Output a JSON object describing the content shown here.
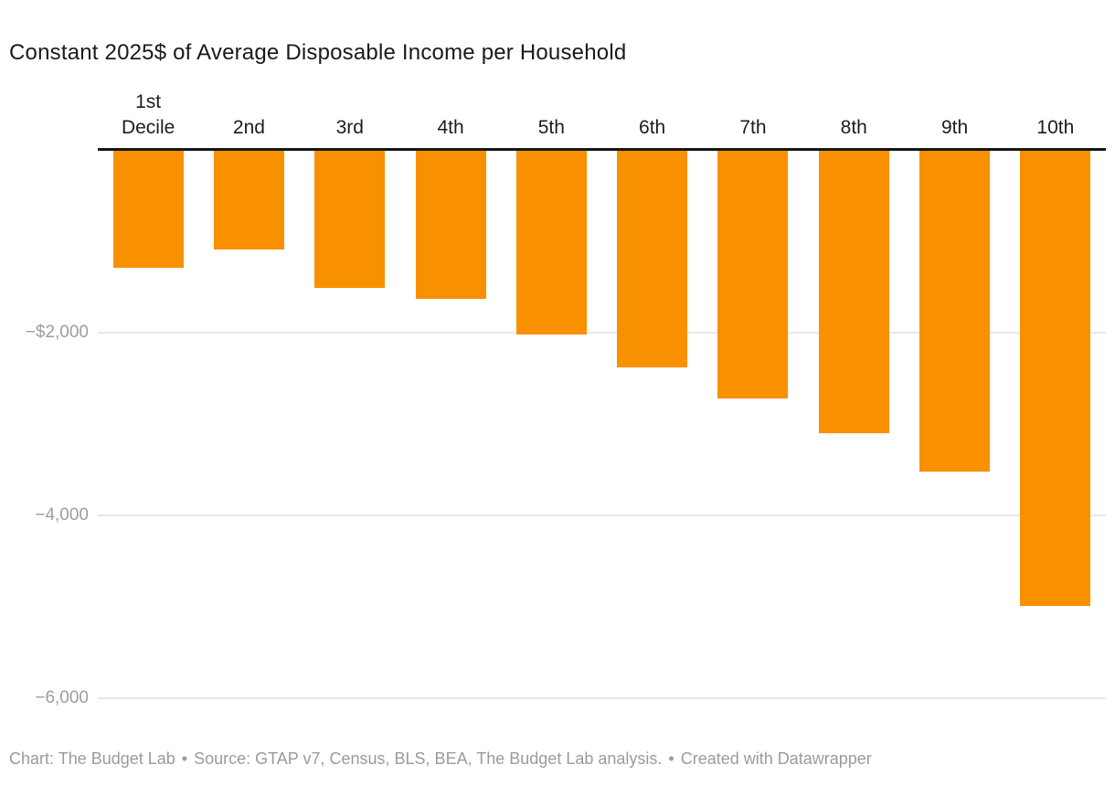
{
  "header": {
    "title": "Constant 2025$ of Average Disposable Income per Household"
  },
  "chart_data": {
    "type": "bar",
    "title": "Constant 2025$ of Average Disposable Income per Household",
    "categories": [
      "1st Decile",
      "2nd",
      "3rd",
      "4th",
      "5th",
      "6th",
      "7th",
      "8th",
      "9th",
      "10th"
    ],
    "values": [
      -1300,
      -1100,
      -1520,
      -1640,
      -2030,
      -2390,
      -2730,
      -3110,
      -3530,
      -5000
    ],
    "xlabel": "",
    "ylabel": "",
    "ylim": [
      -6400,
      0
    ],
    "yticks": [
      {
        "value": -2000,
        "label": "−$2,000"
      },
      {
        "value": -4000,
        "label": "−4,000"
      },
      {
        "value": -6000,
        "label": "−6,000"
      }
    ],
    "grid": true,
    "legend_position": "none",
    "bar_color": "#f99000",
    "axis_color": "#161616",
    "gridline_color": "#e8e8e8",
    "tick_label_color": "#9d9d9d"
  },
  "footer": {
    "credit": "Chart: The Budget Lab",
    "separator": "•",
    "source": "Source: GTAP v7, Census, BLS, BEA, The Budget Lab analysis.",
    "created_with": "Created with Datawrapper"
  }
}
